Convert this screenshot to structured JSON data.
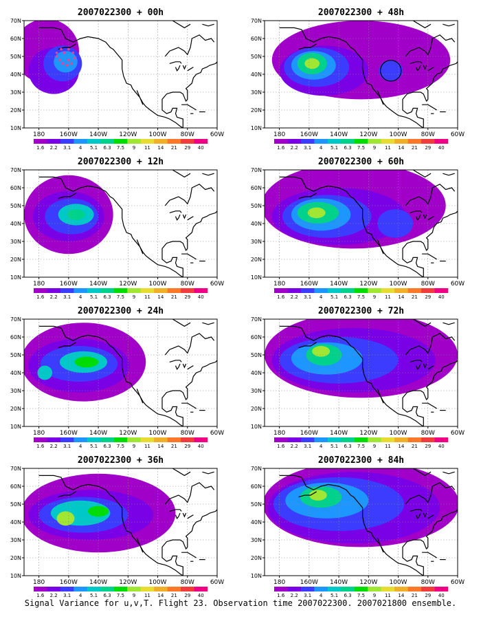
{
  "caption": "Signal Variance for u,v,T. Flight 23. Observation time 2007022300. 2007021800 ensemble.",
  "colors": {
    "levels": [
      "#a000c8",
      "#7a00e6",
      "#3c3cff",
      "#1e96ff",
      "#00c8c8",
      "#00d28c",
      "#00dc00",
      "#a0e632",
      "#e6dc32",
      "#f0af28",
      "#fa7828",
      "#f03c3c",
      "#f00082"
    ],
    "coast": "#000000",
    "grid": "#888888",
    "target_dots": "#ff3c8c",
    "circle": "#000000"
  },
  "chart_data": [
    {
      "type": "heatmap",
      "title": "2007022300 + 00h",
      "lat_ticks": [
        "10N",
        "20N",
        "30N",
        "40N",
        "50N",
        "60N",
        "70N"
      ],
      "lon_ticks": [
        "180",
        "160W",
        "140W",
        "120W",
        "100W",
        "80W",
        "60W"
      ],
      "colorbar": [
        "1.6",
        "2.2",
        "3.1",
        "4",
        "5.1",
        "6.3",
        "7.5",
        "9",
        "11",
        "14",
        "21",
        "29",
        "40"
      ],
      "grid": true,
      "regions": [
        {
          "lon": -175,
          "lat": 53,
          "rx": 22,
          "ry": 18,
          "level": 0
        },
        {
          "lon": -170,
          "lat": 42,
          "rx": 17,
          "ry": 13,
          "level": 1
        },
        {
          "lon": -164,
          "lat": 46,
          "rx": 13,
          "ry": 10,
          "level": 2
        },
        {
          "lon": -162,
          "lat": 47,
          "rx": 8,
          "ry": 6,
          "level": 3
        }
      ],
      "target_dots": true,
      "circle": null
    },
    {
      "type": "heatmap",
      "title": "2007022300 + 48h",
      "lat_ticks": [
        "10N",
        "20N",
        "30N",
        "40N",
        "50N",
        "60N",
        "70N"
      ],
      "lon_ticks": [
        "180",
        "160W",
        "140W",
        "120W",
        "100W",
        "80W",
        "60W"
      ],
      "colorbar": [
        "1.6",
        "2.2",
        "3.1",
        "4",
        "5.1",
        "6.3",
        "7.5",
        "9",
        "11",
        "14",
        "21",
        "29",
        "40"
      ],
      "grid": true,
      "regions": [
        {
          "lon": -125,
          "lat": 48,
          "rx": 60,
          "ry": 22,
          "level": 0
        },
        {
          "lon": -150,
          "lat": 42,
          "rx": 30,
          "ry": 14,
          "level": 1
        },
        {
          "lon": -155,
          "lat": 44,
          "rx": 22,
          "ry": 11,
          "level": 2
        },
        {
          "lon": -157,
          "lat": 45,
          "rx": 15,
          "ry": 8,
          "level": 3
        },
        {
          "lon": -158,
          "lat": 46,
          "rx": 10,
          "ry": 6,
          "level": 5
        },
        {
          "lon": -158,
          "lat": 46,
          "rx": 5,
          "ry": 3,
          "level": 7
        },
        {
          "lon": -105,
          "lat": 42,
          "rx": 8,
          "ry": 6,
          "level": 2
        }
      ],
      "target_dots": false,
      "circle": {
        "lon": -105,
        "lat": 42,
        "r": 7
      }
    },
    {
      "type": "heatmap",
      "title": "2007022300 + 12h",
      "lat_ticks": [
        "10N",
        "20N",
        "30N",
        "40N",
        "50N",
        "60N",
        "70N"
      ],
      "lon_ticks": [
        "180",
        "160W",
        "140W",
        "120W",
        "100W",
        "80W",
        "60W"
      ],
      "colorbar": [
        "1.6",
        "2.2",
        "3.1",
        "4",
        "5.1",
        "6.3",
        "7.5",
        "9",
        "11",
        "14",
        "21",
        "29",
        "40"
      ],
      "grid": true,
      "regions": [
        {
          "lon": -160,
          "lat": 45,
          "rx": 30,
          "ry": 22,
          "level": 0
        },
        {
          "lon": -160,
          "lat": 44,
          "rx": 24,
          "ry": 14,
          "level": 1
        },
        {
          "lon": -158,
          "lat": 44,
          "rx": 18,
          "ry": 10,
          "level": 2
        },
        {
          "lon": -155,
          "lat": 45,
          "rx": 12,
          "ry": 6,
          "level": 4
        },
        {
          "lon": -155,
          "lat": 45,
          "rx": 6,
          "ry": 3,
          "level": 5
        }
      ],
      "target_dots": false,
      "circle": null
    },
    {
      "type": "heatmap",
      "title": "2007022300 + 60h",
      "lat_ticks": [
        "10N",
        "20N",
        "30N",
        "40N",
        "50N",
        "60N",
        "70N"
      ],
      "lon_ticks": [
        "180",
        "160W",
        "140W",
        "120W",
        "100W",
        "80W",
        "60W"
      ],
      "colorbar": [
        "1.6",
        "2.2",
        "3.1",
        "4",
        "5.1",
        "6.3",
        "7.5",
        "9",
        "11",
        "14",
        "21",
        "29",
        "40"
      ],
      "grid": true,
      "regions": [
        {
          "lon": -130,
          "lat": 50,
          "rx": 62,
          "ry": 24,
          "level": 0
        },
        {
          "lon": -140,
          "lat": 44,
          "rx": 45,
          "ry": 16,
          "level": 1
        },
        {
          "lon": -148,
          "lat": 44,
          "rx": 30,
          "ry": 12,
          "level": 2
        },
        {
          "lon": -152,
          "lat": 45,
          "rx": 20,
          "ry": 9,
          "level": 3
        },
        {
          "lon": -154,
          "lat": 46,
          "rx": 14,
          "ry": 6,
          "level": 5
        },
        {
          "lon": -155,
          "lat": 46,
          "rx": 6,
          "ry": 3,
          "level": 7
        },
        {
          "lon": -102,
          "lat": 40,
          "rx": 12,
          "ry": 8,
          "level": 2
        }
      ],
      "target_dots": false,
      "circle": null
    },
    {
      "type": "heatmap",
      "title": "2007022300 + 24h",
      "lat_ticks": [
        "10N",
        "20N",
        "30N",
        "40N",
        "50N",
        "60N",
        "70N"
      ],
      "lon_ticks": [
        "180",
        "160W",
        "140W",
        "120W",
        "100W",
        "80W",
        "60W"
      ],
      "colorbar": [
        "1.6",
        "2.2",
        "3.1",
        "4",
        "5.1",
        "6.3",
        "7.5",
        "9",
        "11",
        "14",
        "21",
        "29",
        "40"
      ],
      "grid": true,
      "regions": [
        {
          "lon": -150,
          "lat": 46,
          "rx": 42,
          "ry": 22,
          "level": 0
        },
        {
          "lon": -153,
          "lat": 44,
          "rx": 34,
          "ry": 15,
          "level": 1
        },
        {
          "lon": -153,
          "lat": 45,
          "rx": 26,
          "ry": 10,
          "level": 2
        },
        {
          "lon": -150,
          "lat": 46,
          "rx": 16,
          "ry": 6,
          "level": 4
        },
        {
          "lon": -148,
          "lat": 46,
          "rx": 8,
          "ry": 3,
          "level": 6
        },
        {
          "lon": -176,
          "lat": 40,
          "rx": 5,
          "ry": 4,
          "level": 4
        }
      ],
      "target_dots": false,
      "circle": null
    },
    {
      "type": "heatmap",
      "title": "2007022300 + 72h",
      "lat_ticks": [
        "10N",
        "20N",
        "30N",
        "40N",
        "50N",
        "60N",
        "70N"
      ],
      "lon_ticks": [
        "180",
        "160W",
        "140W",
        "120W",
        "100W",
        "80W",
        "60W"
      ],
      "colorbar": [
        "1.6",
        "2.2",
        "3.1",
        "4",
        "5.1",
        "6.3",
        "7.5",
        "9",
        "11",
        "14",
        "21",
        "29",
        "40"
      ],
      "grid": true,
      "regions": [
        {
          "lon": -125,
          "lat": 50,
          "rx": 65,
          "ry": 24,
          "level": 0
        },
        {
          "lon": -130,
          "lat": 47,
          "rx": 55,
          "ry": 18,
          "level": 1
        },
        {
          "lon": -140,
          "lat": 47,
          "rx": 40,
          "ry": 13,
          "level": 2
        },
        {
          "lon": -148,
          "lat": 48,
          "rx": 24,
          "ry": 9,
          "level": 3
        },
        {
          "lon": -150,
          "lat": 50,
          "rx": 12,
          "ry": 6,
          "level": 5
        },
        {
          "lon": -152,
          "lat": 52,
          "rx": 6,
          "ry": 3,
          "level": 7
        }
      ],
      "target_dots": false,
      "circle": null
    },
    {
      "type": "heatmap",
      "title": "2007022300 + 36h",
      "lat_ticks": [
        "10N",
        "20N",
        "30N",
        "40N",
        "50N",
        "60N",
        "70N"
      ],
      "lon_ticks": [
        "180",
        "160W",
        "140W",
        "120W",
        "100W",
        "80W",
        "60W"
      ],
      "colorbar": [
        "1.6",
        "2.2",
        "3.1",
        "4",
        "5.1",
        "6.3",
        "7.5",
        "9",
        "11",
        "14",
        "21",
        "29",
        "40"
      ],
      "grid": true,
      "regions": [
        {
          "lon": -140,
          "lat": 45,
          "rx": 52,
          "ry": 22,
          "level": 0
        },
        {
          "lon": -145,
          "lat": 44,
          "rx": 42,
          "ry": 14,
          "level": 1
        },
        {
          "lon": -150,
          "lat": 44,
          "rx": 30,
          "ry": 10,
          "level": 2
        },
        {
          "lon": -152,
          "lat": 45,
          "rx": 20,
          "ry": 7,
          "level": 4
        },
        {
          "lon": -162,
          "lat": 42,
          "rx": 6,
          "ry": 4,
          "level": 7
        },
        {
          "lon": -140,
          "lat": 46,
          "rx": 7,
          "ry": 3,
          "level": 6
        }
      ],
      "target_dots": false,
      "circle": null
    },
    {
      "type": "heatmap",
      "title": "2007022300 + 84h",
      "lat_ticks": [
        "10N",
        "20N",
        "30N",
        "40N",
        "50N",
        "60N",
        "70N"
      ],
      "lon_ticks": [
        "180",
        "160W",
        "140W",
        "120W",
        "100W",
        "80W",
        "60W"
      ],
      "colorbar": [
        "1.6",
        "2.2",
        "3.1",
        "4",
        "5.1",
        "6.3",
        "7.5",
        "9",
        "11",
        "14",
        "21",
        "29",
        "40"
      ],
      "grid": true,
      "regions": [
        {
          "lon": -125,
          "lat": 50,
          "rx": 66,
          "ry": 24,
          "level": 0
        },
        {
          "lon": -130,
          "lat": 48,
          "rx": 58,
          "ry": 20,
          "level": 1
        },
        {
          "lon": -140,
          "lat": 50,
          "rx": 44,
          "ry": 15,
          "level": 2
        },
        {
          "lon": -148,
          "lat": 52,
          "rx": 28,
          "ry": 10,
          "level": 3
        },
        {
          "lon": -152,
          "lat": 54,
          "rx": 14,
          "ry": 6,
          "level": 5
        },
        {
          "lon": -154,
          "lat": 55,
          "rx": 6,
          "ry": 3,
          "level": 7
        }
      ],
      "target_dots": false,
      "circle": null
    }
  ]
}
